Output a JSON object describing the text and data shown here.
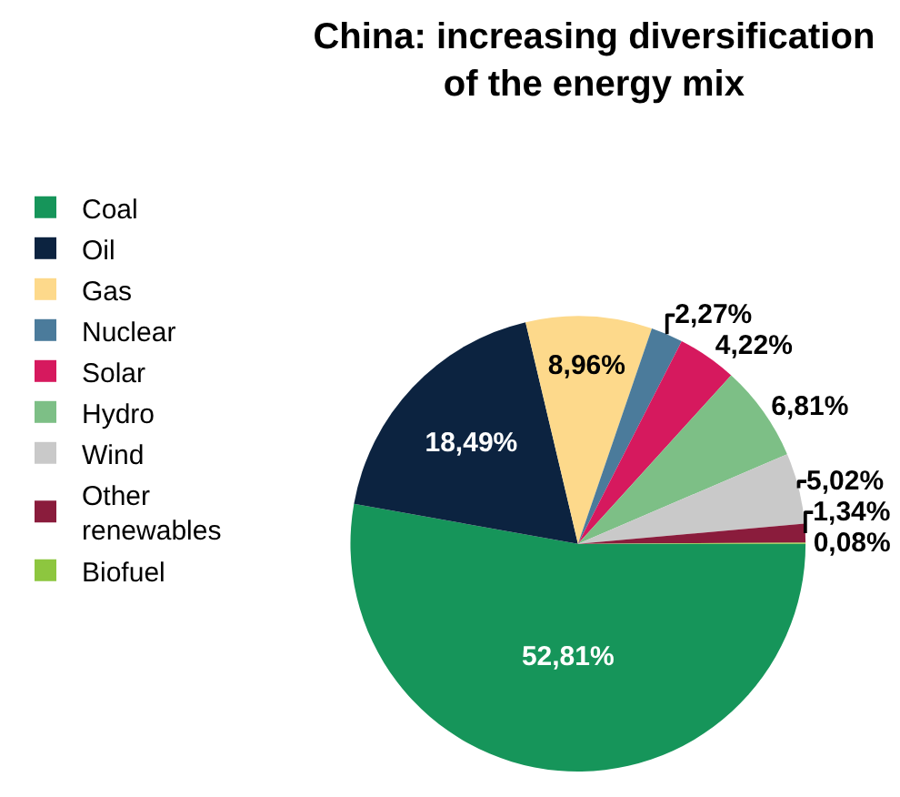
{
  "chart_data": {
    "type": "pie",
    "title": "China: increasing diversification of the energy mix",
    "categories": [
      "Coal",
      "Oil",
      "Gas",
      "Nuclear",
      "Solar",
      "Hydro",
      "Wind",
      "Other renewables",
      "Biofuel"
    ],
    "values": [
      52.81,
      18.49,
      8.96,
      2.27,
      4.22,
      6.81,
      5.02,
      1.34,
      0.08
    ],
    "value_labels": [
      "52,81%",
      "18,49%",
      "8,96%",
      "2,27%",
      "4,22%",
      "6,81%",
      "5,02%",
      "1,34%",
      "0,08%"
    ],
    "colors": [
      "#16955a",
      "#0c2340",
      "#fdd98b",
      "#4b7b9b",
      "#d6195e",
      "#7dbf86",
      "#c9c9c9",
      "#8a1c3c",
      "#8dc63f"
    ],
    "legend": "left"
  }
}
